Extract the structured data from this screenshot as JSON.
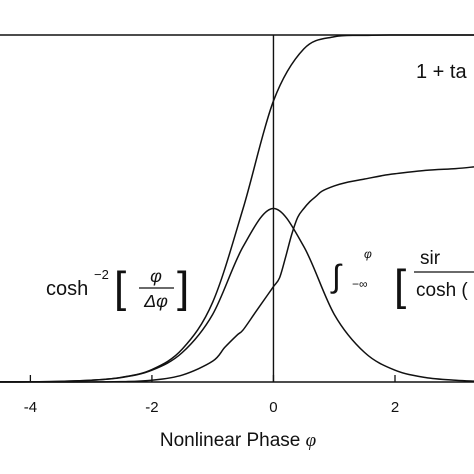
{
  "chart_data": {
    "type": "line",
    "title": "",
    "xlabel": "Nonlinear Phase",
    "xlabel_symbol": "φ",
    "ylabel": "",
    "xlim": [
      -4.5,
      3.3
    ],
    "ylim": [
      0,
      2.0
    ],
    "x_ticks": [
      -4,
      -2,
      0,
      2
    ],
    "x_tick_labels": [
      "-4",
      "-2",
      "0",
      "2"
    ],
    "grid": false,
    "legend": "none",
    "line_color": "#111111",
    "series": [
      {
        "x": [
          -4.5,
          -4.0,
          -3.5,
          -3.0,
          -2.5,
          -2.0,
          -1.5,
          -1.0,
          -0.5,
          0.0,
          0.5,
          1.0,
          1.5,
          2.0,
          2.5,
          3.0,
          3.3
        ],
        "values": [
          0.0005,
          0.0013,
          0.0036,
          0.0099,
          0.027,
          0.072,
          0.19,
          0.46,
          1.0,
          1.62,
          1.92,
          1.99,
          1.998,
          2.0,
          2.0,
          2.0,
          2.0
        ]
      },
      {
        "x": [
          -4.5,
          -4.0,
          -3.5,
          -3.0,
          -2.5,
          -2.0,
          -1.5,
          -1.0,
          -0.5,
          0.0,
          0.5,
          1.0,
          1.5,
          2.0,
          2.5,
          3.0,
          3.3
        ],
        "values": [
          0.0005,
          0.0013,
          0.0036,
          0.0099,
          0.026,
          0.068,
          0.17,
          0.39,
          0.78,
          1.0,
          0.78,
          0.39,
          0.17,
          0.068,
          0.026,
          0.0099,
          0.005
        ]
      },
      {
        "x": [
          -4.5,
          -3.5,
          -2.5,
          -2.0,
          -1.5,
          -1.0,
          -0.8,
          -0.6,
          -0.5,
          -0.3,
          -0.1,
          0.0,
          0.1,
          0.2,
          0.3,
          0.4,
          0.5,
          0.6,
          0.7,
          0.8,
          1.0,
          1.2,
          1.5,
          1.8,
          2.0,
          2.5,
          3.0,
          3.3
        ],
        "values": [
          0.0,
          0.0,
          0.002,
          0.01,
          0.04,
          0.12,
          0.2,
          0.27,
          0.3,
          0.4,
          0.5,
          0.55,
          0.6,
          0.72,
          0.85,
          0.95,
          1.0,
          1.04,
          1.07,
          1.1,
          1.13,
          1.15,
          1.17,
          1.19,
          1.2,
          1.22,
          1.23,
          1.24
        ]
      }
    ],
    "annotations": [
      {
        "text": "1 + ta"
      },
      {
        "text": "cosh",
        "superscript": "−2",
        "fraction_num": "φ",
        "fraction_den": "Δφ"
      },
      {
        "text": "∫",
        "upper_limit": "φ",
        "lower_limit": "−∞",
        "fraction_num": "sir",
        "fraction_den": "cosh ("
      }
    ]
  }
}
